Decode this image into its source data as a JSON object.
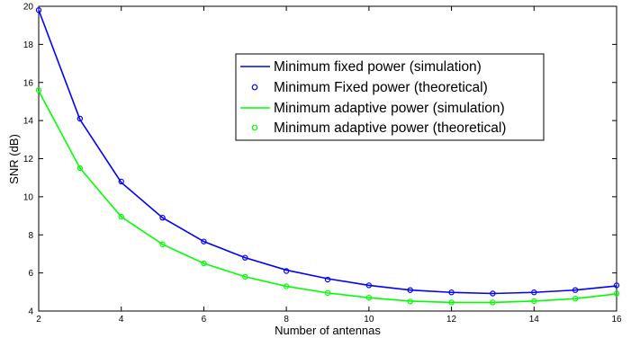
{
  "chart_data": {
    "type": "line",
    "title": "",
    "xlabel": "Number of antennas",
    "ylabel": "SNR (dB)",
    "xlim": [
      2,
      16
    ],
    "ylim": [
      4,
      20
    ],
    "xticks": [
      2,
      4,
      6,
      8,
      10,
      12,
      14,
      16
    ],
    "yticks": [
      4,
      6,
      8,
      10,
      12,
      14,
      16,
      18,
      20
    ],
    "grid": false,
    "legend_position": "top-right",
    "x": [
      2,
      3,
      4,
      5,
      6,
      7,
      8,
      9,
      10,
      11,
      12,
      13,
      14,
      15,
      16
    ],
    "series": [
      {
        "name": "Minimum fixed power (simulation)",
        "style": "line",
        "color": "#0000ff",
        "values": [
          19.8,
          14.05,
          10.75,
          8.9,
          7.65,
          6.8,
          6.15,
          5.7,
          5.35,
          5.1,
          4.98,
          4.92,
          4.98,
          5.1,
          5.32
        ]
      },
      {
        "name": "Minimum Fixed power (theoretical)",
        "style": "marker",
        "color": "#0000ff",
        "values": [
          19.8,
          14.1,
          10.8,
          8.9,
          7.65,
          6.8,
          6.1,
          5.65,
          5.35,
          5.1,
          4.98,
          4.92,
          4.98,
          5.1,
          5.35
        ]
      },
      {
        "name": "Minimum adaptive power (simulation)",
        "style": "line",
        "color": "#00ff00",
        "values": [
          15.55,
          11.5,
          8.95,
          7.5,
          6.5,
          5.8,
          5.3,
          4.95,
          4.7,
          4.52,
          4.45,
          4.45,
          4.52,
          4.65,
          4.9
        ]
      },
      {
        "name": "Minimum adaptive power (theoretical)",
        "style": "marker",
        "color": "#00ff00",
        "values": [
          15.6,
          11.5,
          8.95,
          7.5,
          6.5,
          5.8,
          5.3,
          4.95,
          4.7,
          4.5,
          4.45,
          4.45,
          4.52,
          4.65,
          4.92
        ]
      }
    ]
  }
}
